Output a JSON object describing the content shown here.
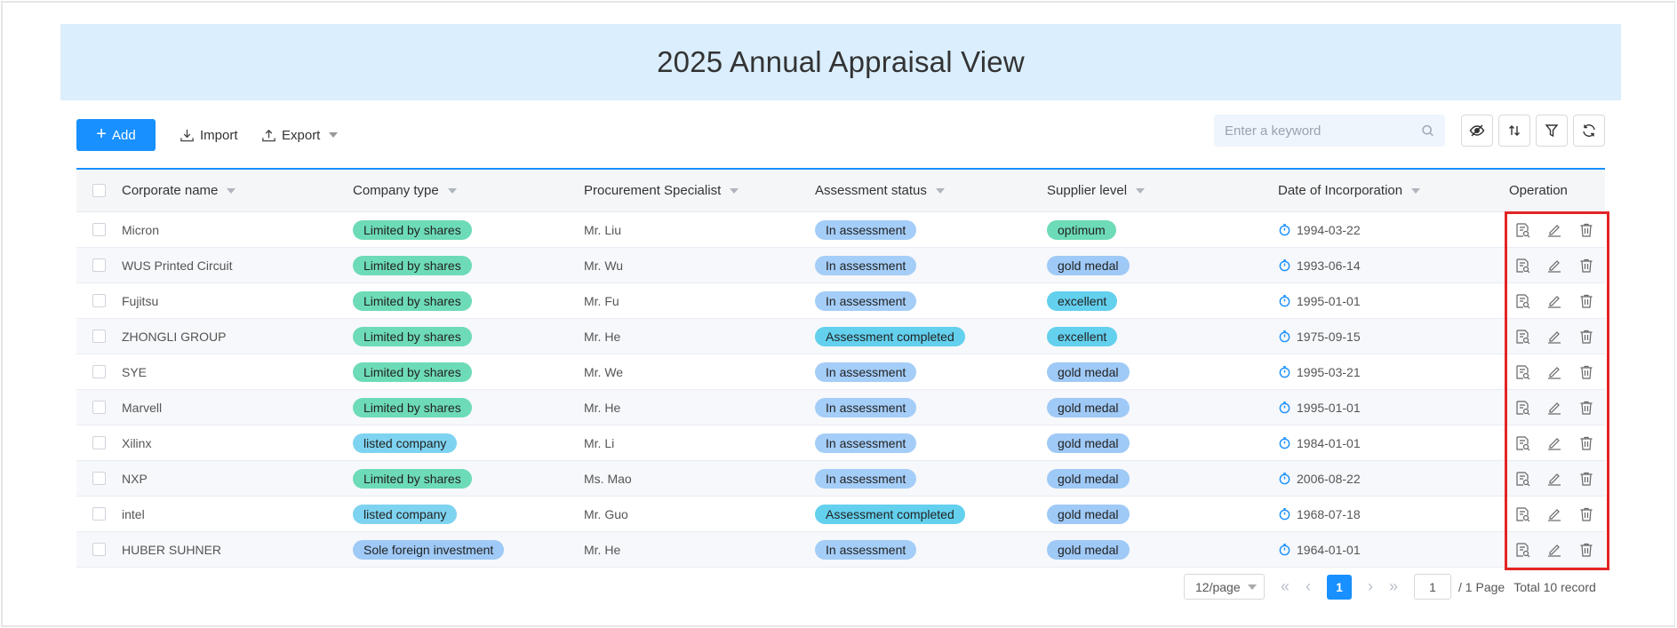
{
  "title": "2025 Annual Appraisal View",
  "toolbar": {
    "add_label": "Add",
    "import_label": "Import",
    "export_label": "Export",
    "search_placeholder": "Enter a keyword",
    "icons": [
      "eye-slash-icon",
      "sort-icon",
      "filter-icon",
      "refresh-icon"
    ]
  },
  "columns": [
    "Corporate name",
    "Company type",
    "Procurement Specialist",
    "Assessment status",
    "Supplier level",
    "Date of Incorporation",
    "Operation"
  ],
  "rows": [
    {
      "name": "Micron",
      "type": "Limited by shares",
      "specialist": "Mr. Liu",
      "status": "In assessment",
      "level": "optimum",
      "date": "1994-03-22"
    },
    {
      "name": "WUS Printed Circuit",
      "type": "Limited by shares",
      "specialist": "Mr. Wu",
      "status": "In assessment",
      "level": "gold medal",
      "date": "1993-06-14"
    },
    {
      "name": "Fujitsu",
      "type": "Limited by shares",
      "specialist": "Mr. Fu",
      "status": "In assessment",
      "level": "excellent",
      "date": "1995-01-01"
    },
    {
      "name": "ZHONGLI GROUP",
      "type": "Limited by shares",
      "specialist": "Mr. He",
      "status": "Assessment completed",
      "level": "excellent",
      "date": "1975-09-15"
    },
    {
      "name": "SYE",
      "type": "Limited by shares",
      "specialist": "Mr. We",
      "status": "In assessment",
      "level": "gold medal",
      "date": "1995-03-21"
    },
    {
      "name": "Marvell",
      "type": "Limited by shares",
      "specialist": "Mr. He",
      "status": "In assessment",
      "level": "gold medal",
      "date": "1995-01-01"
    },
    {
      "name": "Xilinx",
      "type": "listed company",
      "specialist": "Mr. Li",
      "status": "In assessment",
      "level": "gold medal",
      "date": "1984-01-01"
    },
    {
      "name": "NXP",
      "type": "Limited by shares",
      "specialist": "Ms. Mao",
      "status": "In assessment",
      "level": "gold medal",
      "date": "2006-08-22"
    },
    {
      "name": "intel",
      "type": "listed company",
      "specialist": "Mr. Guo",
      "status": "Assessment completed",
      "level": "gold medal",
      "date": "1968-07-18"
    },
    {
      "name": "HUBER SUHNER",
      "type": "Sole foreign investment",
      "specialist": "Mr. He",
      "status": "In assessment",
      "level": "gold medal",
      "date": "1964-01-01"
    }
  ],
  "operations": [
    "view-icon",
    "edit-icon",
    "delete-icon"
  ],
  "pagination": {
    "page_size": "12/page",
    "current_page": "1",
    "page_input": "1",
    "page_total": "/ 1 Page",
    "total_records": "Total 10 record"
  },
  "colors": {
    "accent": "#1890ff",
    "banner": "#daeefe",
    "highlight_box": "#e32525"
  }
}
